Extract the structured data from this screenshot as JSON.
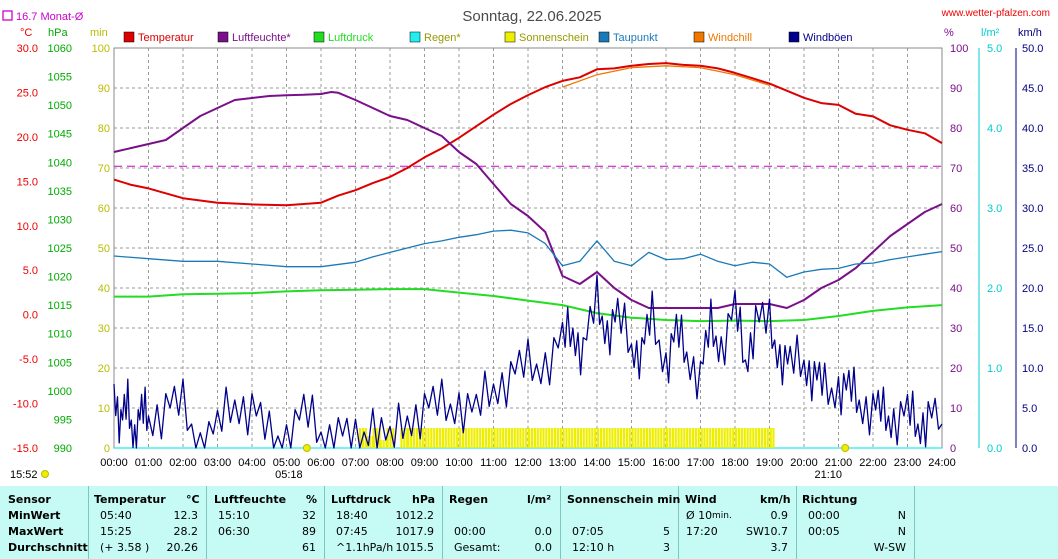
{
  "header": {
    "title": "Sonntag, 22.06.2025",
    "site": "www.wetter-pfalzen.com",
    "month_avg_label": "16.7 Monat-Ø"
  },
  "units": {
    "temp": "°C",
    "pressure": "hPa",
    "minutes": "min",
    "humidity": "%",
    "rain": "l/m²",
    "wind": "km/h"
  },
  "legend": [
    {
      "label": "Temperatur",
      "color": "#dd0000"
    },
    {
      "label": "Luftfeuchte*",
      "color": "#7a0f8a"
    },
    {
      "label": "Luftdruck",
      "color": "#22dd22"
    },
    {
      "label": "Regen*",
      "color": "#22eeee"
    },
    {
      "label": "Sonnenschein",
      "color": "#eeee00"
    },
    {
      "label": "Taupunkt",
      "color": "#1a7ab8"
    },
    {
      "label": "Windchill",
      "color": "#ee7700"
    },
    {
      "label": "Windböen",
      "color": "#00008b"
    }
  ],
  "chart_data": {
    "type": "line",
    "x_ticks": [
      "00:00",
      "01:00",
      "02:00",
      "03:00",
      "04:00",
      "05:00",
      "06:00",
      "07:00",
      "08:00",
      "09:00",
      "10:00",
      "11:00",
      "12:00",
      "13:00",
      "14:00",
      "15:00",
      "16:00",
      "17:00",
      "18:00",
      "19:00",
      "20:00",
      "21:00",
      "22:00",
      "23:00",
      "24:00"
    ],
    "xlim": [
      0,
      24
    ],
    "axes": {
      "temp": {
        "range": [
          -15,
          30
        ],
        "ticks": [
          "30.0",
          "25.0",
          "20.0",
          "15.0",
          "10.0",
          "5.0",
          "0.0",
          "-5.0",
          "-10.0",
          "-15.0"
        ]
      },
      "pressure": {
        "range": [
          990,
          1060
        ],
        "ticks": [
          "1060",
          "1055",
          "1050",
          "1045",
          "1040",
          "1035",
          "1030",
          "1025",
          "1020",
          "1015",
          "1010",
          "1005",
          "1000",
          "995",
          "990"
        ]
      },
      "minutes": {
        "range": [
          0,
          100
        ],
        "ticks": [
          "100",
          "90",
          "80",
          "70",
          "60",
          "50",
          "40",
          "30",
          "20",
          "10",
          "0"
        ]
      },
      "humidity": {
        "range": [
          0,
          100
        ],
        "ticks": [
          "100",
          "90",
          "80",
          "70",
          "60",
          "50",
          "40",
          "30",
          "20",
          "10",
          "0"
        ]
      },
      "rain": {
        "range": [
          0,
          5
        ],
        "ticks": [
          "5.0",
          "4.0",
          "3.0",
          "2.0",
          "1.0",
          "0.0"
        ]
      },
      "wind": {
        "range": [
          0,
          50
        ],
        "ticks": [
          "50.0",
          "45.0",
          "40.0",
          "35.0",
          "30.0",
          "25.0",
          "20.0",
          "15.0",
          "10.0",
          "5.0",
          "0.0"
        ]
      }
    },
    "month_avg_temp": 16.7,
    "sunrise": "05:18",
    "sunset": "21:10",
    "sun_marker_left": "15:52",
    "series": [
      {
        "name": "Temperatur",
        "axis": "temp",
        "x": [
          0,
          0.5,
          1,
          2,
          3,
          4,
          5,
          6,
          6.5,
          7,
          7.5,
          8,
          8.5,
          9,
          9.5,
          10,
          10.5,
          11,
          11.5,
          12,
          12.5,
          13,
          13.5,
          14,
          14.5,
          15,
          15.5,
          16,
          16.5,
          17,
          17.5,
          18,
          18.5,
          19,
          19.5,
          20,
          20.5,
          21,
          21.5,
          22,
          22.5,
          23,
          23.5,
          24
        ],
        "values": [
          15.2,
          14.6,
          14.2,
          13.1,
          12.6,
          12.4,
          12.3,
          12.6,
          13.4,
          14.0,
          14.8,
          15.5,
          16.5,
          17.7,
          18.7,
          19.9,
          21.2,
          22.5,
          23.7,
          24.7,
          25.6,
          26.3,
          26.7,
          27.6,
          27.7,
          28.0,
          28.2,
          28.3,
          28.1,
          28.0,
          27.7,
          27.2,
          26.6,
          26.0,
          25.2,
          24.4,
          23.8,
          23.6,
          22.6,
          22.3,
          21.3,
          20.8,
          20.4,
          19.3
        ]
      },
      {
        "name": "Luftfeuchte*",
        "axis": "humidity",
        "x": [
          0,
          0.5,
          1,
          1.5,
          2,
          2.5,
          3,
          3.5,
          4,
          4.5,
          5,
          5.5,
          6,
          6.3,
          6.5,
          7,
          7.5,
          8,
          8.5,
          9,
          9.5,
          10,
          10.5,
          11,
          11.5,
          12,
          12.5,
          13,
          13.5,
          14,
          14.5,
          15,
          15.5,
          16,
          16.5,
          17,
          17.5,
          18,
          18.5,
          19,
          19.5,
          20,
          20.5,
          21,
          21.5,
          22,
          22.5,
          23,
          23.5,
          24
        ],
        "values": [
          74,
          75,
          76,
          77,
          80,
          83,
          85,
          87,
          87.5,
          88,
          88.2,
          88.3,
          88.5,
          89,
          88.8,
          87,
          85,
          83,
          82,
          80,
          78,
          74,
          71,
          66,
          61,
          58,
          54,
          43,
          41,
          44,
          40,
          37,
          35,
          35,
          35,
          35,
          35,
          36,
          36,
          36,
          35,
          37,
          40,
          42,
          45,
          49,
          53,
          56,
          59,
          61
        ]
      },
      {
        "name": "Luftdruck",
        "axis": "pressure",
        "x": [
          0,
          1,
          2,
          3,
          4,
          5,
          6,
          7,
          8,
          9,
          10,
          11,
          12,
          13,
          14,
          15,
          16,
          17,
          18,
          19,
          20,
          21,
          22,
          23,
          24
        ],
        "values": [
          1016.5,
          1016.5,
          1016.9,
          1017.0,
          1017.1,
          1017.4,
          1017.6,
          1017.7,
          1017.8,
          1017.8,
          1017.2,
          1016.6,
          1015.8,
          1015.0,
          1013.6,
          1012.8,
          1012.4,
          1012.2,
          1012.3,
          1012.2,
          1012.4,
          1013.1,
          1014.0,
          1014.6,
          1015.0
        ]
      },
      {
        "name": "Regen*",
        "axis": "rain",
        "x": [
          0,
          24
        ],
        "values": [
          0,
          0
        ]
      },
      {
        "name": "Sonnenschein",
        "axis": "minutes",
        "x": [
          7.1,
          7.3,
          7.5,
          7.7,
          7.9,
          8.1,
          8.3,
          8.5,
          9,
          10,
          11,
          12,
          13,
          14,
          15,
          16,
          17,
          18,
          19,
          19.1
        ],
        "values": [
          0,
          5,
          3,
          5,
          2,
          5,
          0,
          5,
          5,
          5,
          5,
          5,
          5,
          5,
          5,
          5,
          5,
          5,
          5,
          5
        ]
      },
      {
        "name": "Taupunkt",
        "axis": "temp",
        "x": [
          0,
          1,
          2,
          3,
          4,
          5,
          6,
          7,
          7.5,
          8,
          8.5,
          9,
          9.5,
          10,
          10.5,
          11,
          11.5,
          12,
          12.5,
          13,
          13.5,
          14,
          14.5,
          15,
          15.5,
          16,
          16.5,
          17,
          17.5,
          18,
          18.5,
          19,
          19.5,
          20,
          20.5,
          21,
          21.5,
          22,
          22.5,
          23,
          23.5,
          24
        ],
        "values": [
          6.6,
          6.3,
          6.0,
          6.0,
          5.7,
          5.4,
          5.4,
          5.9,
          6.5,
          7.0,
          7.5,
          8.0,
          8.3,
          8.7,
          9.0,
          9.4,
          9.5,
          9.2,
          8.0,
          5.5,
          6.0,
          8.3,
          6.0,
          5.5,
          7.0,
          6.2,
          6.3,
          6.8,
          6.0,
          5.5,
          5.9,
          5.7,
          4.2,
          4.8,
          5.1,
          5.2,
          5.7,
          5.8,
          6.2,
          6.5,
          6.8,
          7.1
        ]
      },
      {
        "name": "Windchill",
        "axis": "temp",
        "x": [
          13,
          14,
          15,
          16,
          17,
          18,
          19
        ],
        "values": [
          25.6,
          27.0,
          27.8,
          28.0,
          27.8,
          27.0,
          25.8
        ]
      },
      {
        "name": "Windböen",
        "axis": "wind",
        "x": [
          0,
          0.2,
          0.4,
          0.6,
          0.8,
          1,
          1.5,
          2,
          2.5,
          3,
          3.5,
          4,
          4.5,
          5,
          5.5,
          6,
          6.5,
          7,
          7.5,
          8,
          8.5,
          9,
          9.5,
          10,
          10.5,
          11,
          11.5,
          12,
          12.5,
          13,
          13.3,
          13.6,
          14,
          14.3,
          14.6,
          15,
          15.3,
          15.6,
          16,
          16.3,
          16.6,
          17,
          17.3,
          17.6,
          18,
          18.3,
          18.6,
          19,
          19.3,
          19.6,
          20,
          20.3,
          20.6,
          21,
          21.3,
          21.6,
          22,
          22.3,
          22.6,
          23,
          23.3,
          23.6,
          24
        ],
        "values": [
          8,
          3,
          5,
          2,
          4,
          4,
          5,
          5,
          1,
          2,
          6,
          5,
          1,
          2,
          4,
          2,
          2,
          0,
          4,
          0,
          4,
          5,
          5,
          6,
          4,
          8,
          9,
          10,
          11,
          13,
          15,
          12,
          18,
          15,
          16,
          13,
          12,
          16,
          11,
          14,
          12,
          9,
          15,
          13,
          17,
          11,
          16,
          15,
          12,
          10,
          11,
          9,
          7,
          8,
          7,
          6,
          5,
          4,
          4,
          4,
          3,
          4,
          3
        ]
      }
    ]
  },
  "stats_table": {
    "headers": {
      "sensor": "Sensor",
      "temp": "Temperatur",
      "temp_unit": "°C",
      "hum": "Luftfeuchte",
      "hum_unit": "%",
      "press": "Luftdruck",
      "press_unit": "hPa",
      "rain": "Regen",
      "rain_unit": "l/m²",
      "sun": "Sonnenschein min",
      "wind": "Wind",
      "wind_unit": "km/h",
      "dir": "Richtung"
    },
    "rows": [
      {
        "label": "MinWert",
        "temp_time": "05:40",
        "temp_val": "12.3",
        "hum_time": "15:10",
        "hum_val": "32",
        "press_time": "18:40",
        "press_val": "1012.2",
        "rain_time": "",
        "rain_val": "",
        "sun_time": "",
        "sun_val": "",
        "wind_time": "Ø 10",
        "wind_sub": "min.",
        "wind_val": "0.9",
        "dir_time": "00:00",
        "dir_val": "N"
      },
      {
        "label": "MaxWert",
        "temp_time": "15:25",
        "temp_val": "28.2",
        "hum_time": "06:30",
        "hum_val": "89",
        "press_time": "07:45",
        "press_val": "1017.9",
        "rain_time": "00:00",
        "rain_val": "0.0",
        "sun_time": "07:05",
        "sun_val": "5",
        "wind_time": "17:20",
        "wind_sub": "SW",
        "wind_val": "10.7",
        "dir_time": "00:05",
        "dir_val": "N"
      },
      {
        "label": "Durchschnitt",
        "temp_time": "(+ 3.58 )",
        "temp_val": "20.26",
        "hum_time": "",
        "hum_val": "61",
        "press_time": "^1.1hPa/h",
        "press_val": "1015.5",
        "rain_time": "Gesamt:",
        "rain_val": "0.0",
        "sun_time": "12:10 h",
        "sun_val": "3",
        "wind_time": "",
        "wind_sub": "",
        "wind_val": "3.7",
        "dir_time": "",
        "dir_val": "W-SW"
      }
    ]
  }
}
